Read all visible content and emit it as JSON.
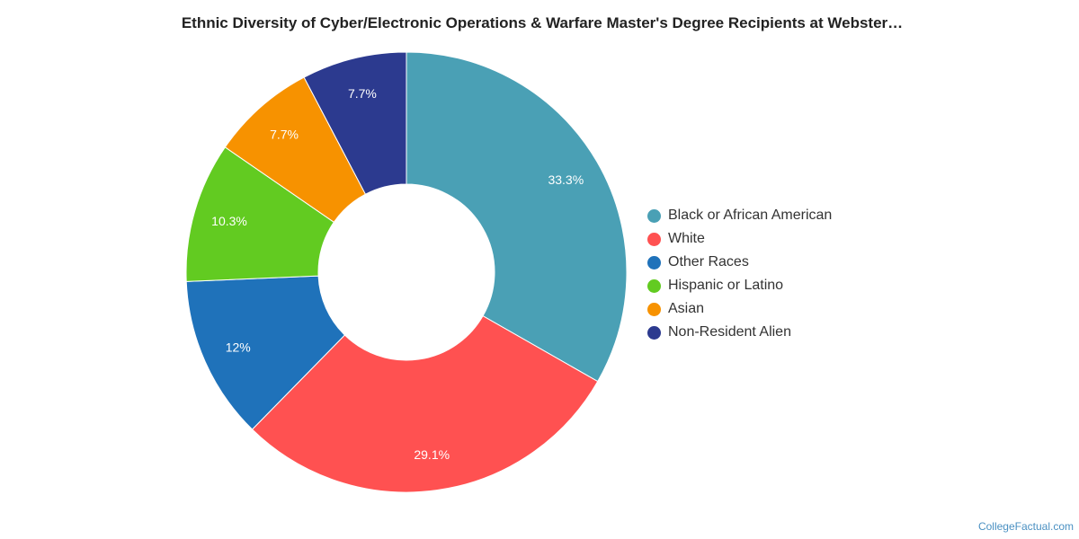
{
  "chart_data": {
    "type": "pie",
    "title": "Ethnic Diversity of Cyber/Electronic Operations & Warfare Master's Degree Recipients at Webster…",
    "categories": [
      "Black or African American",
      "White",
      "Other Races",
      "Hispanic or Latino",
      "Asian",
      "Non-Resident Alien"
    ],
    "values": [
      33.3,
      29.1,
      12,
      10.3,
      7.7,
      7.7
    ],
    "labels": [
      "33.3%",
      "29.1%",
      "12%",
      "10.3%",
      "7.7%",
      "7.7%"
    ],
    "colors": [
      "#4aa0b5",
      "#ff5151",
      "#1f72ba",
      "#62cb21",
      "#f79200",
      "#2c3a8f"
    ],
    "donut": true,
    "legend_position": "right"
  },
  "footer": {
    "credit": "CollegeFactual.com"
  }
}
